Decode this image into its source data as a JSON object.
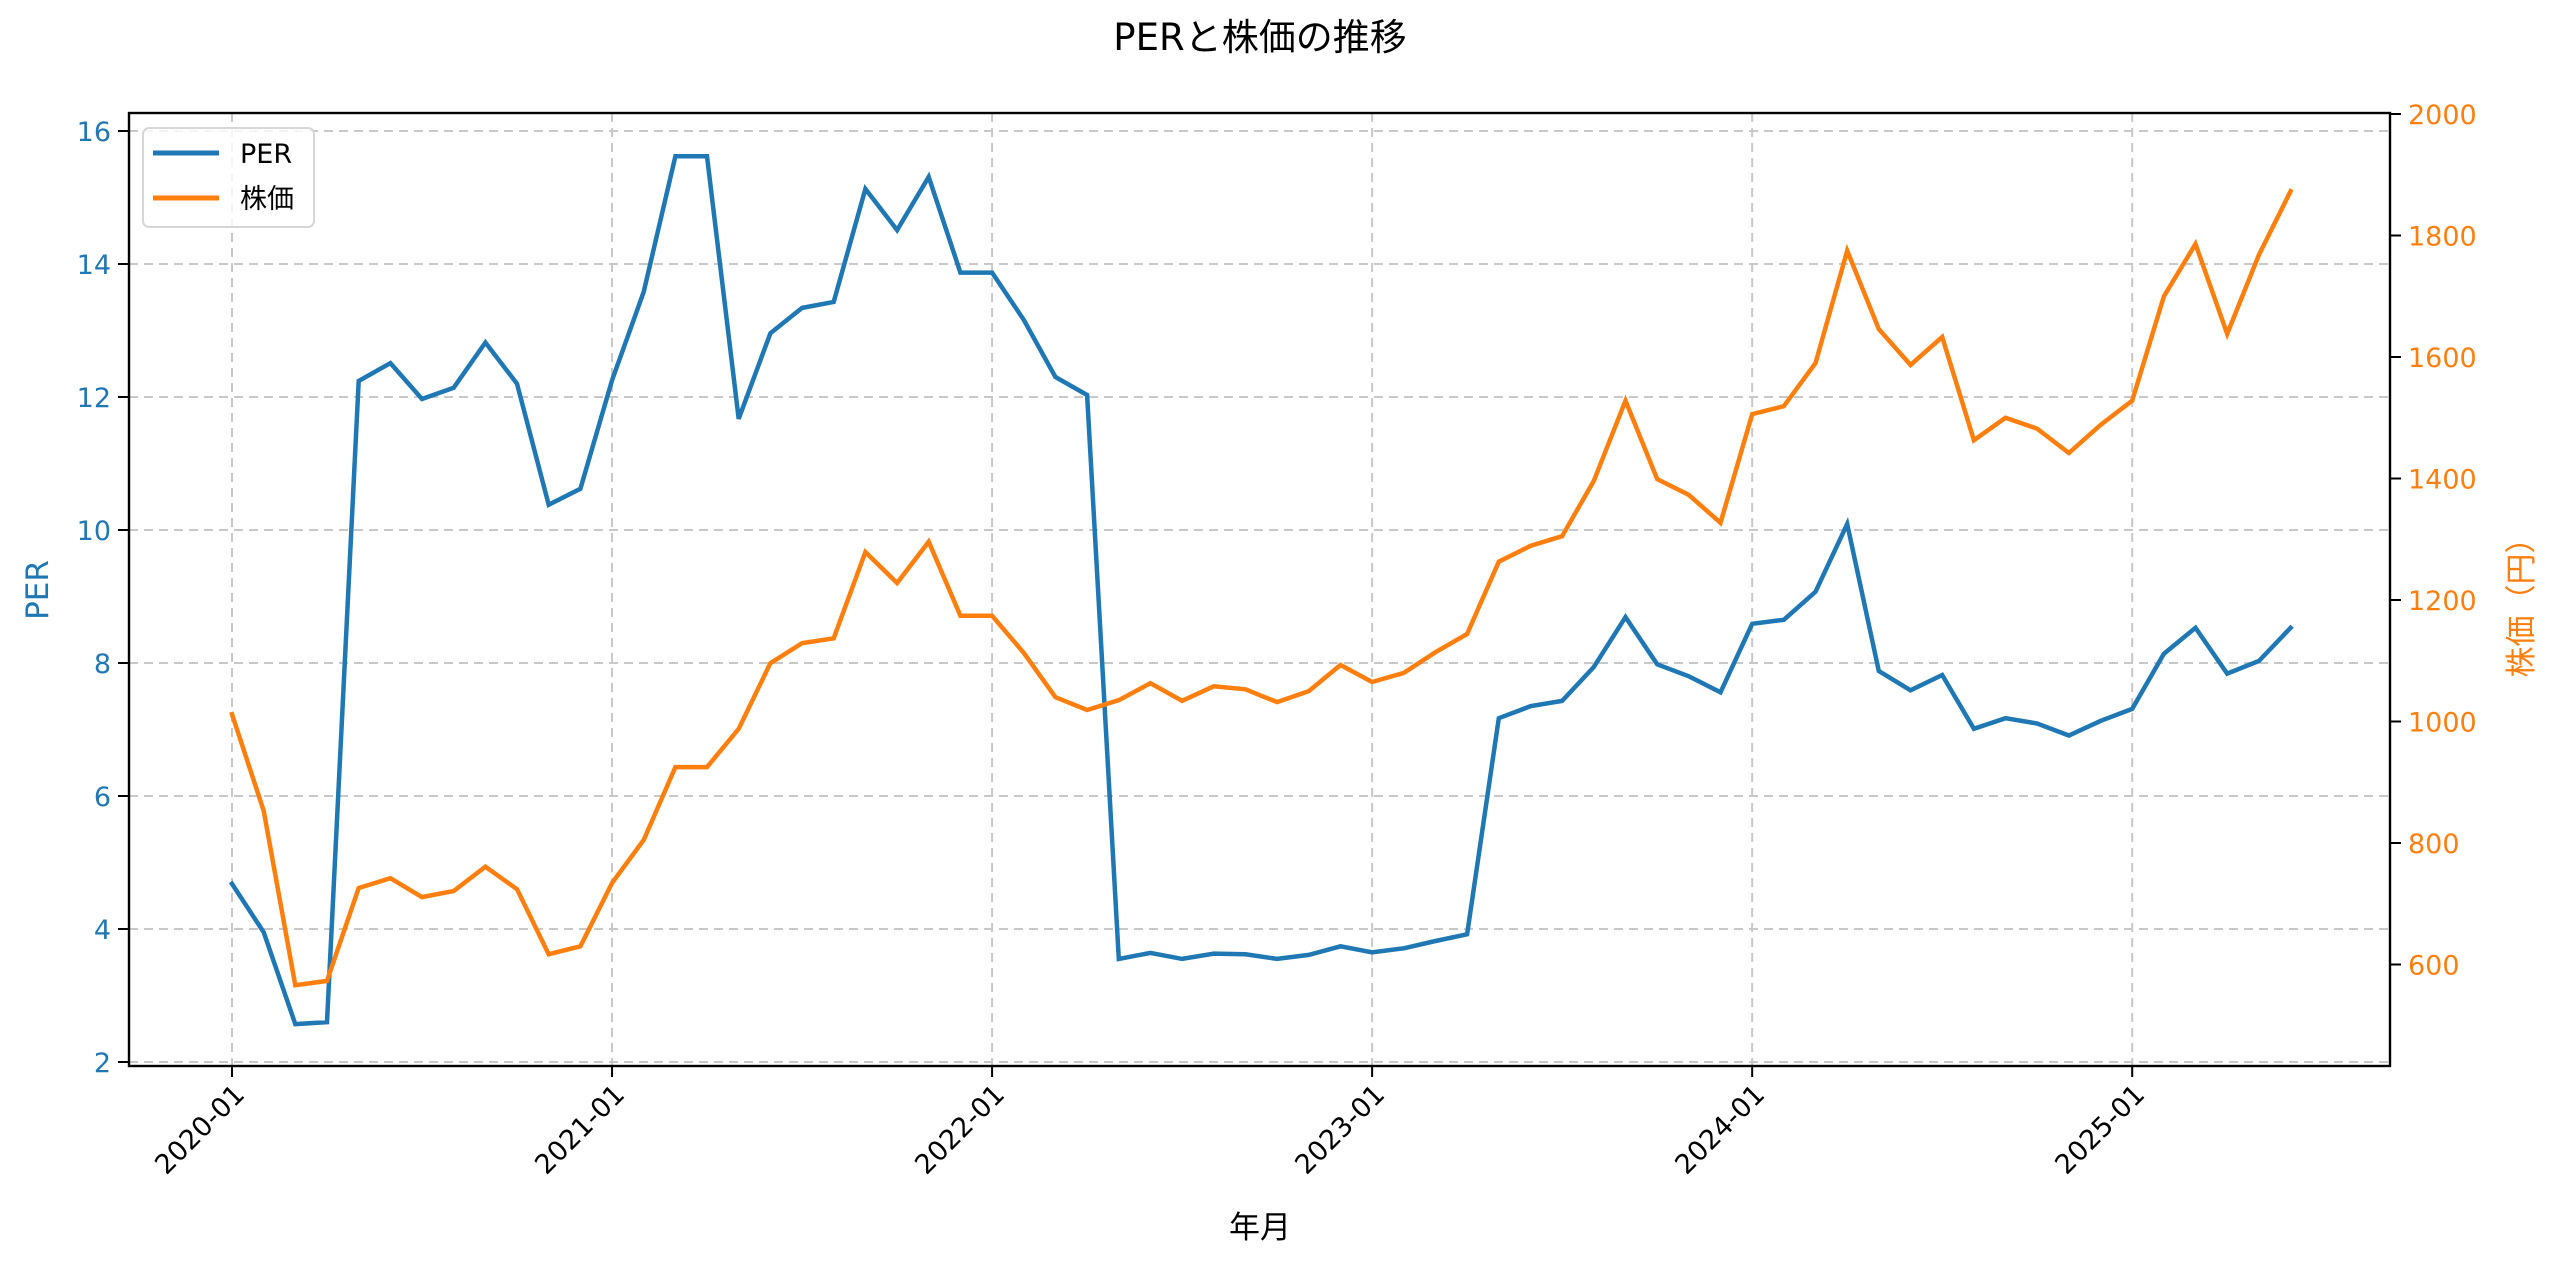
{
  "chart_data": {
    "type": "line",
    "title": "PERと株価の推移",
    "xlabel": "年月",
    "ylabel": "PER",
    "ylabel_right": "株価（円）",
    "ylim": [
      1.9,
      16.3
    ],
    "ylim_right": [
      430,
      2000
    ],
    "grid": true,
    "legend_position": "upper left",
    "x_tick_labels": [
      "2020-01",
      "2021-01",
      "2022-01",
      "2023-01",
      "2024-01",
      "2025-01"
    ],
    "y_ticks": [
      2,
      4,
      6,
      8,
      10,
      12,
      14,
      16
    ],
    "y_ticks_right": [
      600,
      800,
      1000,
      1200,
      1400,
      1600,
      1800,
      2000
    ],
    "x": [
      "2020-01",
      "2020-02",
      "2020-03",
      "2020-04",
      "2020-05",
      "2020-06",
      "2020-07",
      "2020-08",
      "2020-09",
      "2020-10",
      "2020-11",
      "2020-12",
      "2021-01",
      "2021-02",
      "2021-03",
      "2021-04",
      "2021-05",
      "2021-06",
      "2021-07",
      "2021-08",
      "2021-09",
      "2021-10",
      "2021-11",
      "2021-12",
      "2022-01",
      "2022-02",
      "2022-03",
      "2022-04",
      "2022-05",
      "2022-06",
      "2022-07",
      "2022-08",
      "2022-09",
      "2022-10",
      "2022-11",
      "2022-12",
      "2023-01",
      "2023-02",
      "2023-03",
      "2023-04",
      "2023-05",
      "2023-06",
      "2023-07",
      "2023-08",
      "2023-09",
      "2023-10",
      "2023-11",
      "2023-12",
      "2024-01",
      "2024-02",
      "2024-03",
      "2024-04",
      "2024-05",
      "2024-06",
      "2024-07",
      "2024-08",
      "2024-09",
      "2024-10",
      "2024-11",
      "2024-12",
      "2025-01",
      "2025-02",
      "2025-03",
      "2025-04",
      "2025-05",
      "2025-06"
    ],
    "series": [
      {
        "name": "PER",
        "axis": "left",
        "color": "#1f77b4",
        "values": [
          4.68,
          3.95,
          2.57,
          2.6,
          12.24,
          12.51,
          11.97,
          12.14,
          12.82,
          12.2,
          10.38,
          10.62,
          12.25,
          13.58,
          15.62,
          15.62,
          11.67,
          12.96,
          13.34,
          13.43,
          15.13,
          14.51,
          15.31,
          13.87,
          13.87,
          13.16,
          12.3,
          12.03,
          3.55,
          3.64,
          3.55,
          3.63,
          3.62,
          3.55,
          3.61,
          3.74,
          3.65,
          3.71,
          3.82,
          3.92,
          7.17,
          7.35,
          7.43,
          7.94,
          8.69,
          7.98,
          7.8,
          7.56,
          8.59,
          8.65,
          9.07,
          10.09,
          7.88,
          7.59,
          7.82,
          7.01,
          7.17,
          7.09,
          6.91,
          7.13,
          7.31,
          8.14,
          8.53,
          7.84,
          8.03,
          8.53
        ]
      },
      {
        "name": "株価",
        "axis": "right",
        "color": "#ff7f0e",
        "values": [
          1012,
          853,
          566,
          573,
          726,
          742,
          711,
          721,
          761,
          724,
          617,
          630,
          734,
          805,
          925,
          925,
          988,
          1096,
          1129,
          1137,
          1279,
          1228,
          1296,
          1174,
          1174,
          1113,
          1040,
          1019,
          1035,
          1063,
          1034,
          1058,
          1053,
          1032,
          1050,
          1093,
          1065,
          1080,
          1114,
          1144,
          1263,
          1289,
          1305,
          1396,
          1528,
          1399,
          1373,
          1327,
          1506,
          1519,
          1590,
          1775,
          1646,
          1587,
          1633,
          1463,
          1500,
          1482,
          1442,
          1488,
          1528,
          1700,
          1786,
          1638,
          1768,
          1873
        ]
      }
    ]
  },
  "legend": {
    "items": [
      {
        "label": "PER",
        "color": "#1f77b4"
      },
      {
        "label": "株価",
        "color": "#ff7f0e"
      }
    ]
  },
  "colors": {
    "per": "#1f77b4",
    "price": "#ff7f0e",
    "grid": "#c8c8c8",
    "axis": "#000000"
  }
}
